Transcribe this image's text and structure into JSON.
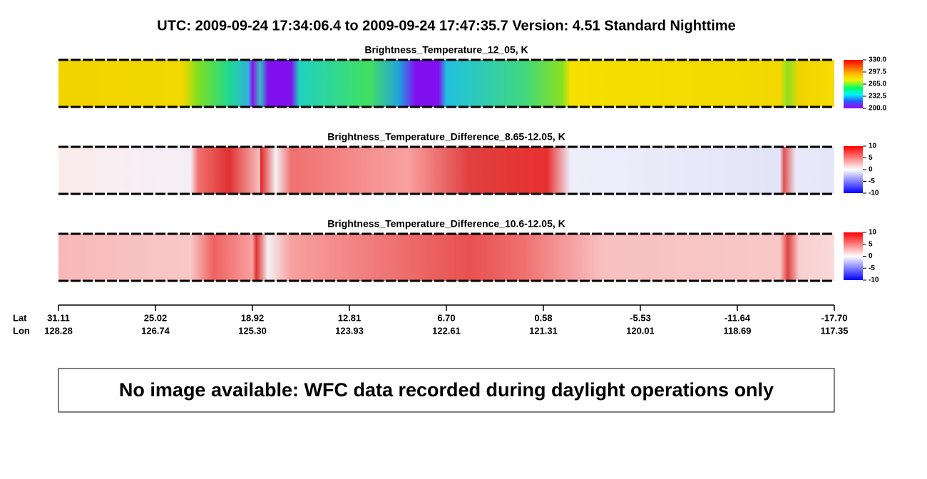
{
  "header": {
    "title": "UTC:  2009-09-24   17:34:06.4  to  2009-09-24   17:47:35.7    Version: 4.51  Standard Nighttime"
  },
  "panels": [
    {
      "title": "Brightness_Temperature_12_05, K",
      "colorbar_ticks": [
        "330.0",
        "297.5",
        "265.0",
        "232.5",
        "200.0"
      ]
    },
    {
      "title": "Brightness_Temperature_Difference_8.65-12.05, K",
      "colorbar_ticks": [
        "10",
        "5",
        "0",
        "-5",
        "-10"
      ]
    },
    {
      "title": "Brightness_Temperature_Difference_10.6-12.05, K",
      "colorbar_ticks": [
        "10",
        "5",
        "0",
        "-5",
        "-10"
      ]
    }
  ],
  "axis": {
    "lat_label": "Lat",
    "lon_label": "Lon",
    "lat": [
      "31.11",
      "25.02",
      "18.92",
      "12.81",
      "6.70",
      "0.58",
      "-5.53",
      "-11.64",
      "-17.70"
    ],
    "lon": [
      "128.28",
      "126.74",
      "125.30",
      "123.93",
      "122.61",
      "121.31",
      "120.01",
      "118.69",
      "117.35"
    ]
  },
  "message": "No image available: WFC data recorded during daylight operations only"
}
